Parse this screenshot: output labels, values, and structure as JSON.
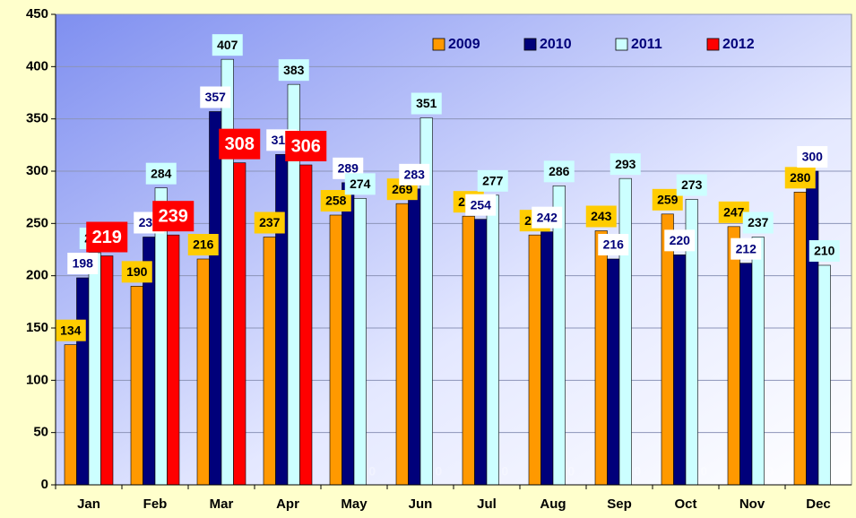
{
  "chart_data": {
    "type": "bar",
    "categories": [
      "Jan",
      "Feb",
      "Mar",
      "Apr",
      "May",
      "Jun",
      "Jul",
      "Aug",
      "Sep",
      "Oct",
      "Nov",
      "Dec"
    ],
    "series": [
      {
        "name": "2009",
        "color": "#ff9900",
        "values": [
          134,
          190,
          216,
          237,
          258,
          269,
          257,
          239,
          243,
          259,
          247,
          280
        ]
      },
      {
        "name": "2010",
        "color": "#00007a",
        "values": [
          198,
          237,
          357,
          316,
          289,
          283,
          254,
          242,
          216,
          220,
          212,
          300
        ]
      },
      {
        "name": "2011",
        "color": "#ccffff",
        "values": [
          222,
          284,
          407,
          383,
          274,
          351,
          277,
          286,
          293,
          273,
          237,
          210
        ]
      },
      {
        "name": "2012",
        "color": "#ff0000",
        "values": [
          219,
          239,
          308,
          306,
          0,
          0,
          0,
          0,
          0,
          0,
          0,
          0
        ]
      }
    ],
    "ylim": [
      0,
      450
    ],
    "yticks": [
      0,
      50,
      100,
      150,
      200,
      250,
      300,
      350,
      400,
      450
    ],
    "grid": true,
    "legend": "top-right"
  }
}
